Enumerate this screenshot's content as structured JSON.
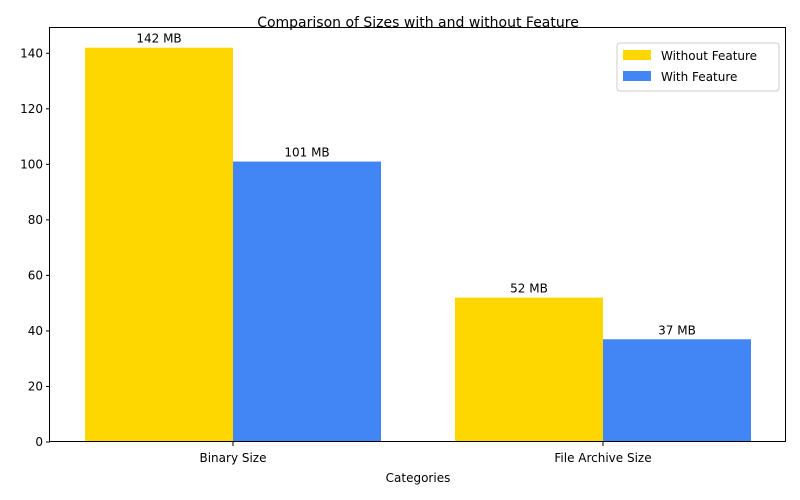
{
  "chart_data": {
    "type": "bar",
    "title": "Comparison of Sizes with and without Feature",
    "xlabel": "Categories",
    "ylabel": "",
    "categories": [
      "Binary Size",
      "File Archive Size"
    ],
    "series": [
      {
        "name": "Without Feature",
        "values": [
          142,
          52
        ],
        "labels": [
          "142 MB",
          "52 MB"
        ],
        "color": "#FFD700"
      },
      {
        "name": "With Feature",
        "values": [
          101,
          37
        ],
        "labels": [
          "101 MB",
          "37 MB"
        ],
        "color": "#4285F4"
      }
    ],
    "ylim": [
      0,
      149.1
    ],
    "yticks": [
      0,
      20,
      40,
      60,
      80,
      100,
      120,
      140
    ],
    "legend_position": "top-right",
    "grid": false
  }
}
